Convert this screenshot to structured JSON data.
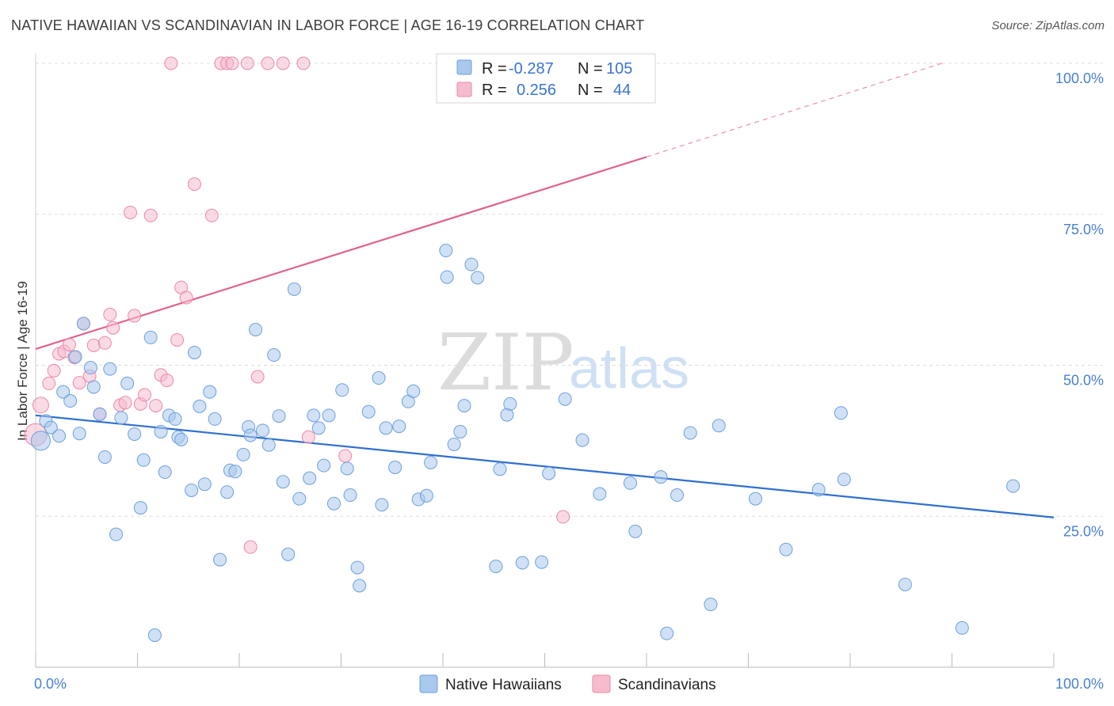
{
  "title": "NATIVE HAWAIIAN VS SCANDINAVIAN IN LABOR FORCE | AGE 16-19 CORRELATION CHART",
  "source": "Source: ZipAtlas.com",
  "watermark": {
    "zip": "ZIP",
    "atlas": "atlas"
  },
  "colors": {
    "blue_fill": "#a9c8ee",
    "blue_stroke": "#6e9fd9",
    "blue_line": "#2f6fd0",
    "pink_fill": "#f6bccd",
    "pink_stroke": "#e98aa8",
    "pink_line": "#e0628c",
    "grid": "#dddddd",
    "tick_text": "#4a7fd0"
  },
  "legend_stats": [
    {
      "r_label": "R =",
      "r_value": "-0.287",
      "n_label": "N =",
      "n_value": "105"
    },
    {
      "r_label": "R =",
      "r_value": "0.256",
      "n_label": "N =",
      "n_value": "44"
    }
  ],
  "chart_data": {
    "type": "scatter",
    "title": "NATIVE HAWAIIAN VS SCANDINAVIAN IN LABOR FORCE | AGE 16-19 CORRELATION CHART",
    "xlabel": "",
    "ylabel": "In Labor Force | Age 16-19",
    "xlim": [
      0,
      100
    ],
    "ylim": [
      0,
      100
    ],
    "x_tick_labels": [
      "0.0%",
      "100.0%"
    ],
    "y_ticks": [
      25,
      50,
      75,
      100
    ],
    "y_tick_labels": [
      "25.0%",
      "50.0%",
      "75.0%",
      "100.0%"
    ],
    "grid": true,
    "legend_position": "bottom-center",
    "series": [
      {
        "name": "Native Hawaiians",
        "color": "#a9c8ee",
        "trend": {
          "x": [
            0,
            100
          ],
          "y": [
            41.7,
            24.8
          ],
          "style": "solid"
        },
        "points": [
          [
            0.5,
            37.5
          ],
          [
            1.0,
            40.8
          ],
          [
            1.5,
            39.7
          ],
          [
            2.3,
            38.3
          ],
          [
            2.7,
            45.6
          ],
          [
            3.4,
            44.1
          ],
          [
            3.9,
            51.4
          ],
          [
            4.3,
            38.7
          ],
          [
            4.7,
            56.9
          ],
          [
            5.4,
            49.6
          ],
          [
            5.7,
            46.4
          ],
          [
            6.3,
            41.9
          ],
          [
            6.8,
            34.8
          ],
          [
            7.3,
            49.4
          ],
          [
            7.9,
            22.0
          ],
          [
            8.4,
            41.3
          ],
          [
            9.0,
            47.0
          ],
          [
            9.7,
            38.6
          ],
          [
            10.3,
            26.4
          ],
          [
            10.6,
            34.3
          ],
          [
            11.3,
            54.6
          ],
          [
            11.7,
            5.3
          ],
          [
            12.3,
            39.0
          ],
          [
            12.7,
            32.3
          ],
          [
            13.1,
            41.7
          ],
          [
            13.7,
            41.1
          ],
          [
            14.0,
            38.1
          ],
          [
            14.3,
            37.7
          ],
          [
            15.3,
            29.3
          ],
          [
            15.6,
            52.1
          ],
          [
            16.1,
            43.2
          ],
          [
            16.6,
            30.3
          ],
          [
            17.1,
            45.6
          ],
          [
            17.6,
            41.1
          ],
          [
            18.1,
            17.8
          ],
          [
            18.8,
            29.0
          ],
          [
            19.1,
            32.6
          ],
          [
            19.6,
            32.4
          ],
          [
            20.4,
            35.2
          ],
          [
            20.9,
            39.8
          ],
          [
            21.1,
            38.4
          ],
          [
            21.6,
            55.9
          ],
          [
            22.3,
            39.2
          ],
          [
            22.9,
            36.8
          ],
          [
            23.4,
            51.7
          ],
          [
            23.9,
            41.6
          ],
          [
            24.3,
            30.7
          ],
          [
            24.8,
            18.7
          ],
          [
            25.4,
            62.6
          ],
          [
            25.9,
            27.9
          ],
          [
            26.9,
            31.3
          ],
          [
            27.3,
            41.7
          ],
          [
            27.8,
            39.6
          ],
          [
            28.3,
            33.4
          ],
          [
            28.8,
            41.7
          ],
          [
            29.3,
            27.1
          ],
          [
            30.1,
            45.9
          ],
          [
            30.6,
            32.9
          ],
          [
            30.9,
            28.5
          ],
          [
            31.6,
            16.5
          ],
          [
            31.8,
            13.5
          ],
          [
            32.7,
            42.3
          ],
          [
            33.7,
            47.9
          ],
          [
            34.0,
            26.9
          ],
          [
            34.4,
            39.6
          ],
          [
            35.3,
            33.1
          ],
          [
            35.7,
            39.9
          ],
          [
            36.6,
            44.0
          ],
          [
            37.1,
            45.7
          ],
          [
            37.6,
            27.8
          ],
          [
            38.4,
            28.4
          ],
          [
            38.8,
            33.9
          ],
          [
            40.3,
            69.0
          ],
          [
            40.4,
            64.6
          ],
          [
            41.1,
            36.9
          ],
          [
            41.7,
            39.0
          ],
          [
            42.1,
            43.3
          ],
          [
            42.8,
            66.7
          ],
          [
            43.4,
            64.5
          ],
          [
            45.2,
            16.7
          ],
          [
            45.6,
            32.8
          ],
          [
            46.3,
            41.8
          ],
          [
            46.6,
            43.6
          ],
          [
            47.8,
            17.3
          ],
          [
            49.7,
            17.4
          ],
          [
            50.4,
            32.1
          ],
          [
            52.0,
            44.4
          ],
          [
            53.7,
            37.6
          ],
          [
            55.4,
            28.7
          ],
          [
            58.4,
            30.5
          ],
          [
            58.9,
            22.5
          ],
          [
            61.4,
            31.5
          ],
          [
            62.0,
            5.6
          ],
          [
            63.0,
            28.5
          ],
          [
            64.3,
            38.8
          ],
          [
            66.3,
            10.4
          ],
          [
            67.1,
            40.0
          ],
          [
            70.7,
            27.9
          ],
          [
            73.7,
            19.5
          ],
          [
            76.9,
            29.4
          ],
          [
            79.1,
            42.1
          ],
          [
            79.4,
            31.1
          ],
          [
            85.4,
            13.7
          ],
          [
            91.0,
            6.5
          ],
          [
            96.0,
            30.0
          ]
        ]
      },
      {
        "name": "Scandinavians",
        "color": "#f6bccd",
        "trend": {
          "x": [
            0,
            60
          ],
          "y": [
            52.7,
            84.5
          ],
          "style": "solid",
          "extended": {
            "x": [
              60,
              89
            ],
            "y": [
              84.5,
              100
            ],
            "style": "dashed"
          }
        },
        "points": [
          [
            0.0,
            38.5
          ],
          [
            0.5,
            43.4
          ],
          [
            1.3,
            47.0
          ],
          [
            1.8,
            49.1
          ],
          [
            2.3,
            51.9
          ],
          [
            2.8,
            52.3
          ],
          [
            3.3,
            53.4
          ],
          [
            3.8,
            51.3
          ],
          [
            4.3,
            47.1
          ],
          [
            4.7,
            56.9
          ],
          [
            5.3,
            48.2
          ],
          [
            5.7,
            53.3
          ],
          [
            6.3,
            41.9
          ],
          [
            6.8,
            53.7
          ],
          [
            7.3,
            58.4
          ],
          [
            7.6,
            56.2
          ],
          [
            8.3,
            43.4
          ],
          [
            8.8,
            43.8
          ],
          [
            9.3,
            75.3
          ],
          [
            9.7,
            58.2
          ],
          [
            10.3,
            43.6
          ],
          [
            10.7,
            45.1
          ],
          [
            11.3,
            74.8
          ],
          [
            11.8,
            43.3
          ],
          [
            12.3,
            48.4
          ],
          [
            12.9,
            47.5
          ],
          [
            13.3,
            100.0
          ],
          [
            13.9,
            54.2
          ],
          [
            14.3,
            62.9
          ],
          [
            14.8,
            61.2
          ],
          [
            15.6,
            80.0
          ],
          [
            17.3,
            74.8
          ],
          [
            18.2,
            100.0
          ],
          [
            18.8,
            100.0
          ],
          [
            19.3,
            100.0
          ],
          [
            20.8,
            100.0
          ],
          [
            21.1,
            19.9
          ],
          [
            21.8,
            48.1
          ],
          [
            22.8,
            100.0
          ],
          [
            24.3,
            100.0
          ],
          [
            26.3,
            100.0
          ],
          [
            26.8,
            38.1
          ],
          [
            30.4,
            35.0
          ],
          [
            51.8,
            24.9
          ]
        ]
      }
    ]
  }
}
